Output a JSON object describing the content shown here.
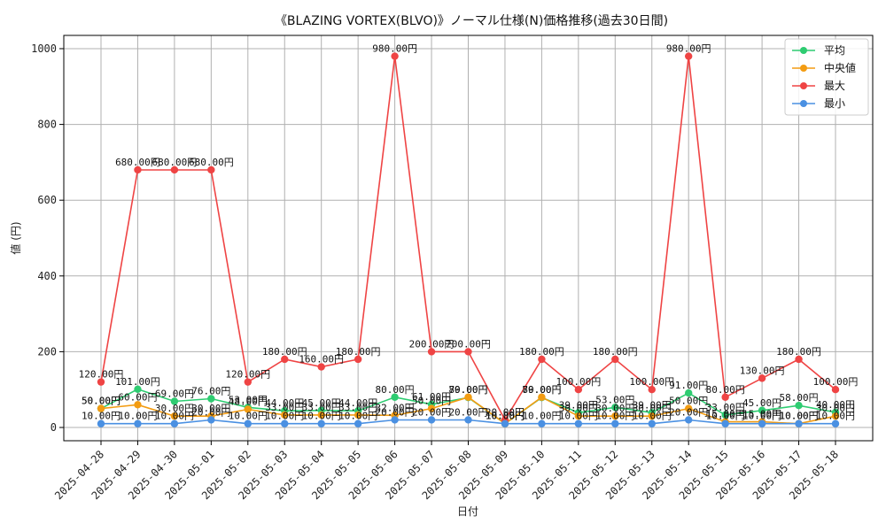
{
  "chart_data": {
    "type": "line",
    "title": "《BLAZING VORTEX(BLVO)》ノーマル仕様(N)価格推移(過去30日間)",
    "xlabel": "日付",
    "ylabel": "値 (円)",
    "ylim": [
      -35,
      1035
    ],
    "yticks": [
      0,
      200,
      400,
      600,
      800,
      1000
    ],
    "grid": true,
    "legend_position": "top-right",
    "label_suffix": "円",
    "categories": [
      "2025-04-28",
      "2025-04-29",
      "2025-04-30",
      "2025-05-01",
      "2025-05-02",
      "2025-05-03",
      "2025-05-04",
      "2025-05-05",
      "2025-05-06",
      "2025-05-07",
      "2025-05-08",
      "2025-05-09",
      "2025-05-10",
      "2025-05-11",
      "2025-05-12",
      "2025-05-13",
      "2025-05-14",
      "2025-05-15",
      "2025-05-16",
      "2025-05-17",
      "2025-05-18"
    ],
    "series": [
      {
        "name": "平均",
        "color": "#2ecc71",
        "values": [
          50,
          101,
          69,
          76,
          53,
          44,
          45,
          44,
          80,
          61,
          79,
          10,
          79,
          39,
          53,
          39,
          91,
          33,
          45,
          58,
          40
        ]
      },
      {
        "name": "中央値",
        "color": "#f39c12",
        "values": [
          50,
          60,
          30,
          30,
          48,
          33,
          33,
          33,
          32,
          50,
          80,
          10,
          80,
          30,
          30,
          30,
          50,
          15,
          15,
          10,
          30
        ]
      },
      {
        "name": "最大",
        "color": "#ef4444",
        "values": [
          120,
          680,
          680,
          680,
          120,
          180,
          160,
          180,
          980,
          200,
          200,
          20,
          180,
          100,
          180,
          100,
          980,
          80,
          130,
          180,
          100
        ]
      },
      {
        "name": "最小",
        "color": "#4a90e2",
        "values": [
          10,
          10,
          10,
          20,
          10,
          10,
          10,
          10,
          20,
          20,
          20,
          10,
          10,
          10,
          10,
          10,
          20,
          10,
          10,
          10,
          10
        ]
      }
    ]
  }
}
